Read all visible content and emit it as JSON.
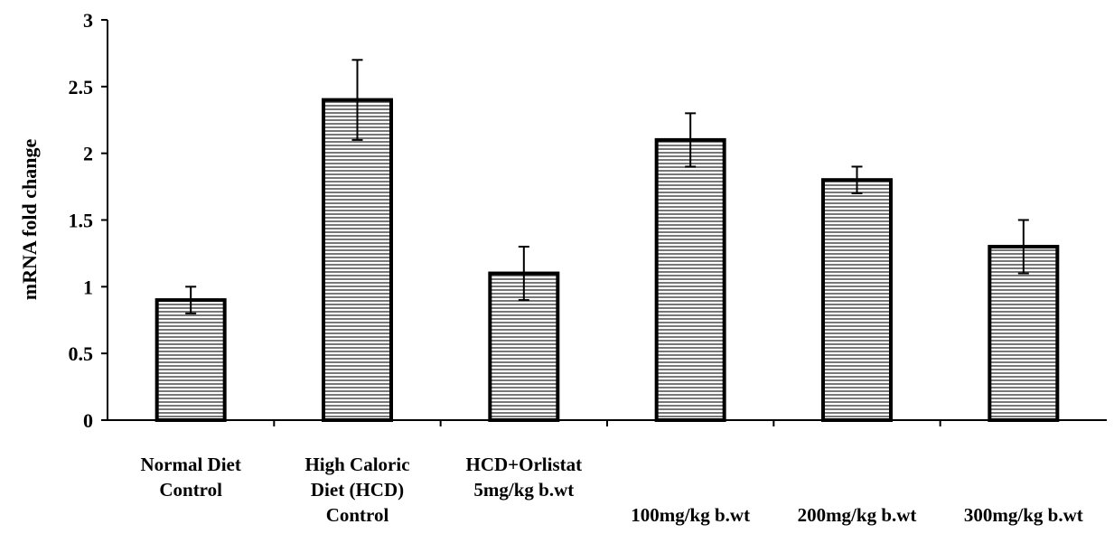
{
  "chart_data": {
    "type": "bar",
    "title": "",
    "xlabel": "",
    "ylabel": "mRNA fold change",
    "ylim": [
      0,
      3
    ],
    "yticks": [
      "0",
      "0.5",
      "1",
      "1.5",
      "2",
      "2.5",
      "3"
    ],
    "categories": [
      [
        "Normal Diet",
        "Control"
      ],
      [
        "High Caloric",
        "Diet (HCD)",
        "Control"
      ],
      [
        "HCD+Orlistat",
        "5mg/kg b.wt"
      ],
      [
        "100mg/kg b.wt"
      ],
      [
        "200mg/kg b.wt"
      ],
      [
        "300mg/kg b.wt"
      ]
    ],
    "values": [
      0.9,
      2.4,
      1.1,
      2.1,
      1.8,
      1.3
    ],
    "error": [
      0.1,
      0.3,
      0.2,
      0.2,
      0.1,
      0.2
    ],
    "grid": false,
    "legend": "none",
    "bar_fill": "horizontal-stripes",
    "colors": {
      "bar_stroke": "#000000",
      "stripe": "#555555",
      "background": "#ffffff"
    }
  }
}
